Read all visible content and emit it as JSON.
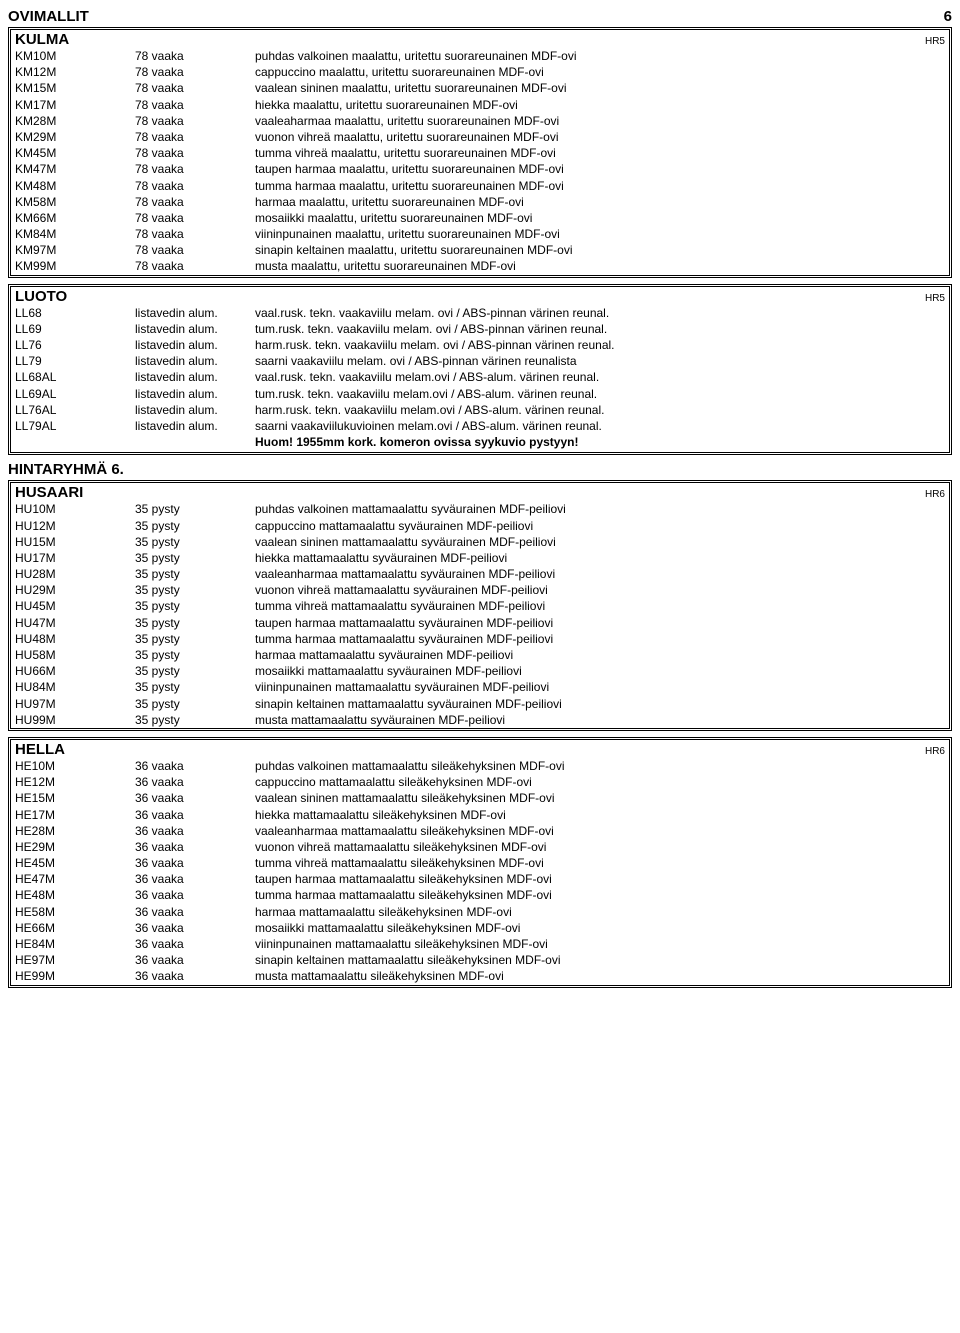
{
  "page": {
    "title": "OVIMALLIT",
    "number": "6"
  },
  "kulma": {
    "title": "KULMA",
    "sub": "HR5",
    "rows": [
      {
        "c": "KM10M",
        "q": "78 vaaka",
        "d": "puhdas valkoinen maalattu, uritettu suorareunainen MDF-ovi"
      },
      {
        "c": "KM12M",
        "q": "78 vaaka",
        "d": "cappuccino maalattu, uritettu suorareunainen MDF-ovi"
      },
      {
        "c": "KM15M",
        "q": "78 vaaka",
        "d": "vaalean sininen maalattu, uritettu suorareunainen MDF-ovi"
      },
      {
        "c": "KM17M",
        "q": "78 vaaka",
        "d": "hiekka maalattu, uritettu suorareunainen MDF-ovi"
      },
      {
        "c": "KM28M",
        "q": "78 vaaka",
        "d": "vaaleaharmaa maalattu, uritettu suorareunainen MDF-ovi"
      },
      {
        "c": "KM29M",
        "q": "78 vaaka",
        "d": "vuonon vihreä maalattu, uritettu suorareunainen MDF-ovi"
      },
      {
        "c": "KM45M",
        "q": "78 vaaka",
        "d": "tumma vihreä maalattu, uritettu suorareunainen MDF-ovi"
      },
      {
        "c": "KM47M",
        "q": "78 vaaka",
        "d": "taupen harmaa maalattu, uritettu suorareunainen MDF-ovi"
      },
      {
        "c": "KM48M",
        "q": "78 vaaka",
        "d": "tumma harmaa maalattu, uritettu suorareunainen MDF-ovi"
      },
      {
        "c": "KM58M",
        "q": "78 vaaka",
        "d": "harmaa maalattu, uritettu suorareunainen MDF-ovi"
      },
      {
        "c": "KM66M",
        "q": "78 vaaka",
        "d": "mosaiikki maalattu, uritettu suorareunainen MDF-ovi"
      },
      {
        "c": "KM84M",
        "q": "78 vaaka",
        "d": "viininpunainen maalattu, uritettu suorareunainen MDF-ovi"
      },
      {
        "c": "KM97M",
        "q": "78 vaaka",
        "d": "sinapin keltainen maalattu, uritettu suorareunainen MDF-ovi"
      },
      {
        "c": "KM99M",
        "q": "78 vaaka",
        "d": "musta maalattu, uritettu suorareunainen MDF-ovi"
      }
    ]
  },
  "luoto": {
    "title": "LUOTO",
    "sub": "HR5",
    "rows": [
      {
        "c": "LL68",
        "q": "listavedin alum.",
        "d": "vaal.rusk. tekn. vaakaviilu melam. ovi / ABS-pinnan värinen reunal."
      },
      {
        "c": "LL69",
        "q": "listavedin alum.",
        "d": "tum.rusk. tekn. vaakaviilu melam. ovi / ABS-pinnan värinen reunal."
      },
      {
        "c": "LL76",
        "q": "listavedin alum.",
        "d": "harm.rusk. tekn. vaakaviilu melam. ovi / ABS-pinnan värinen reunal."
      },
      {
        "c": "LL79",
        "q": "listavedin alum.",
        "d": "saarni vaakaviilu melam. ovi / ABS-pinnan värinen reunalista"
      },
      {
        "c": "LL68AL",
        "q": "listavedin alum.",
        "d": "vaal.rusk. tekn. vaakaviilu melam.ovi / ABS-alum. värinen reunal."
      },
      {
        "c": "LL69AL",
        "q": "listavedin alum.",
        "d": "tum.rusk. tekn. vaakaviilu melam.ovi / ABS-alum. värinen reunal."
      },
      {
        "c": "LL76AL",
        "q": "listavedin alum.",
        "d": "harm.rusk. tekn. vaakaviilu melam.ovi / ABS-alum. värinen reunal."
      },
      {
        "c": "LL79AL",
        "q": "listavedin alum.",
        "d": "saarni vaakaviilukuvioinen melam.ovi / ABS-alum. värinen reunal."
      }
    ],
    "note": "Huom! 1955mm kork. komeron ovissa syykuvio pystyyn!"
  },
  "groupTitle": "HINTARYHMÄ 6.",
  "husaari": {
    "title": "HUSAARI",
    "sub": "HR6",
    "rows": [
      {
        "c": "HU10M",
        "q": "35 pysty",
        "d": "puhdas valkoinen mattamaalattu syväurainen MDF-peiliovi"
      },
      {
        "c": "HU12M",
        "q": "35 pysty",
        "d": "cappuccino mattamaalattu syväurainen MDF-peiliovi"
      },
      {
        "c": "HU15M",
        "q": "35 pysty",
        "d": "vaalean sininen mattamaalattu syväurainen MDF-peiliovi"
      },
      {
        "c": "HU17M",
        "q": "35 pysty",
        "d": "hiekka mattamaalattu syväurainen MDF-peiliovi"
      },
      {
        "c": "HU28M",
        "q": "35 pysty",
        "d": "vaaleanharmaa mattamaalattu syväurainen MDF-peiliovi"
      },
      {
        "c": "HU29M",
        "q": "35 pysty",
        "d": "vuonon vihreä mattamaalattu syväurainen MDF-peiliovi"
      },
      {
        "c": "HU45M",
        "q": "35 pysty",
        "d": "tumma vihreä mattamaalattu syväurainen MDF-peiliovi"
      },
      {
        "c": "HU47M",
        "q": "35 pysty",
        "d": "taupen harmaa mattamaalattu syväurainen MDF-peiliovi"
      },
      {
        "c": "HU48M",
        "q": "35 pysty",
        "d": "tumma harmaa mattamaalattu syväurainen MDF-peiliovi"
      },
      {
        "c": "HU58M",
        "q": "35 pysty",
        "d": "harmaa mattamaalattu syväurainen MDF-peiliovi"
      },
      {
        "c": "HU66M",
        "q": "35 pysty",
        "d": "mosaiikki mattamaalattu syväurainen MDF-peiliovi"
      },
      {
        "c": "HU84M",
        "q": "35 pysty",
        "d": "viininpunainen mattamaalattu syväurainen MDF-peiliovi"
      },
      {
        "c": "HU97M",
        "q": "35 pysty",
        "d": "sinapin keltainen mattamaalattu syväurainen MDF-peiliovi"
      },
      {
        "c": "HU99M",
        "q": "35 pysty",
        "d": "musta mattamaalattu syväurainen MDF-peiliovi"
      }
    ]
  },
  "hella": {
    "title": "HELLA",
    "sub": "HR6",
    "rows": [
      {
        "c": "HE10M",
        "q": "36 vaaka",
        "d": "puhdas valkoinen mattamaalattu sileäkehyksinen MDF-ovi"
      },
      {
        "c": "HE12M",
        "q": "36 vaaka",
        "d": "cappuccino mattamaalattu sileäkehyksinen MDF-ovi"
      },
      {
        "c": "HE15M",
        "q": "36 vaaka",
        "d": "vaalean sininen mattamaalattu sileäkehyksinen MDF-ovi"
      },
      {
        "c": "HE17M",
        "q": "36 vaaka",
        "d": "hiekka mattamaalattu sileäkehyksinen MDF-ovi"
      },
      {
        "c": "HE28M",
        "q": "36 vaaka",
        "d": "vaaleanharmaa mattamaalattu sileäkehyksinen MDF-ovi"
      },
      {
        "c": "HE29M",
        "q": "36 vaaka",
        "d": "vuonon vihreä mattamaalattu sileäkehyksinen MDF-ovi"
      },
      {
        "c": "HE45M",
        "q": "36 vaaka",
        "d": "tumma vihreä mattamaalattu sileäkehyksinen MDF-ovi"
      },
      {
        "c": "HE47M",
        "q": "36 vaaka",
        "d": "taupen harmaa mattamaalattu sileäkehyksinen MDF-ovi"
      },
      {
        "c": "HE48M",
        "q": "36 vaaka",
        "d": "tumma harmaa mattamaalattu sileäkehyksinen MDF-ovi"
      },
      {
        "c": "HE58M",
        "q": "36 vaaka",
        "d": "harmaa mattamaalattu sileäkehyksinen MDF-ovi"
      },
      {
        "c": "HE66M",
        "q": "36 vaaka",
        "d": "mosaiikki mattamaalattu sileäkehyksinen MDF-ovi"
      },
      {
        "c": "HE84M",
        "q": "36 vaaka",
        "d": "viininpunainen mattamaalattu sileäkehyksinen MDF-ovi"
      },
      {
        "c": "HE97M",
        "q": "36 vaaka",
        "d": "sinapin keltainen mattamaalattu sileäkehyksinen MDF-ovi"
      },
      {
        "c": "HE99M",
        "q": "36 vaaka",
        "d": "musta mattamaalattu sileäkehyksinen MDF-ovi"
      }
    ]
  }
}
